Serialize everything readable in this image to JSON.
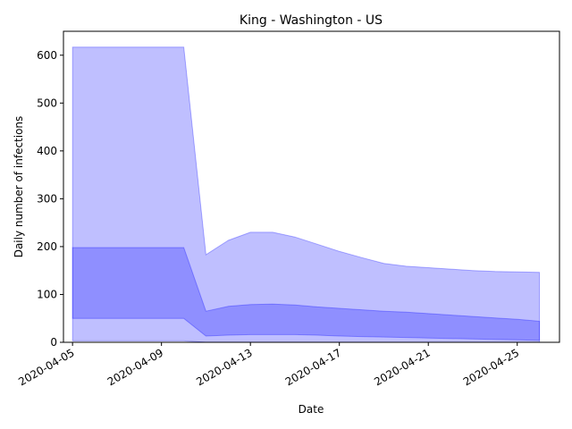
{
  "chart_data": {
    "type": "area",
    "title": "King - Washington - US",
    "xlabel": "Date",
    "ylabel": "Daily number of infections",
    "ylim": [
      0,
      650
    ],
    "xlim": [
      "2020-04-04T14:12",
      "2020-04-26T21:36"
    ],
    "yticks": [
      0,
      100,
      200,
      300,
      400,
      500,
      600
    ],
    "xticks": [
      "2020-04-05",
      "2020-04-09",
      "2020-04-13",
      "2020-04-17",
      "2020-04-21",
      "2020-04-25"
    ],
    "grid": false,
    "colors": {
      "outer_band": "#0000ff",
      "inner_band": "#0000ff"
    },
    "series": [
      {
        "band": "outer",
        "x": [
          "2020-04-05",
          "2020-04-10",
          "2020-04-11",
          "2020-04-12",
          "2020-04-13",
          "2020-04-14",
          "2020-04-15",
          "2020-04-16",
          "2020-04-17",
          "2020-04-18",
          "2020-04-19",
          "2020-04-20",
          "2020-04-21",
          "2020-04-22",
          "2020-04-23",
          "2020-04-24",
          "2020-04-25",
          "2020-04-26"
        ],
        "lower": [
          3,
          3,
          0,
          0,
          0,
          0,
          0,
          0,
          0,
          0,
          0,
          0,
          0,
          0,
          0,
          0,
          0,
          0
        ],
        "upper": [
          617,
          617,
          183,
          213,
          230,
          230,
          220,
          205,
          190,
          177,
          165,
          159,
          156,
          153,
          150,
          148,
          147,
          146
        ]
      },
      {
        "band": "inner",
        "x": [
          "2020-04-05",
          "2020-04-10",
          "2020-04-11",
          "2020-04-12",
          "2020-04-13",
          "2020-04-14",
          "2020-04-15",
          "2020-04-16",
          "2020-04-17",
          "2020-04-18",
          "2020-04-19",
          "2020-04-20",
          "2020-04-21",
          "2020-04-22",
          "2020-04-23",
          "2020-04-24",
          "2020-04-25",
          "2020-04-26"
        ],
        "lower": [
          50,
          50,
          13,
          15,
          16,
          16,
          16,
          15,
          13,
          12,
          11,
          10,
          9,
          8,
          7,
          6,
          5,
          4
        ],
        "upper": [
          198,
          198,
          65,
          75,
          79,
          80,
          78,
          74,
          71,
          68,
          65,
          63,
          60,
          57,
          54,
          51,
          48,
          44
        ]
      }
    ]
  }
}
